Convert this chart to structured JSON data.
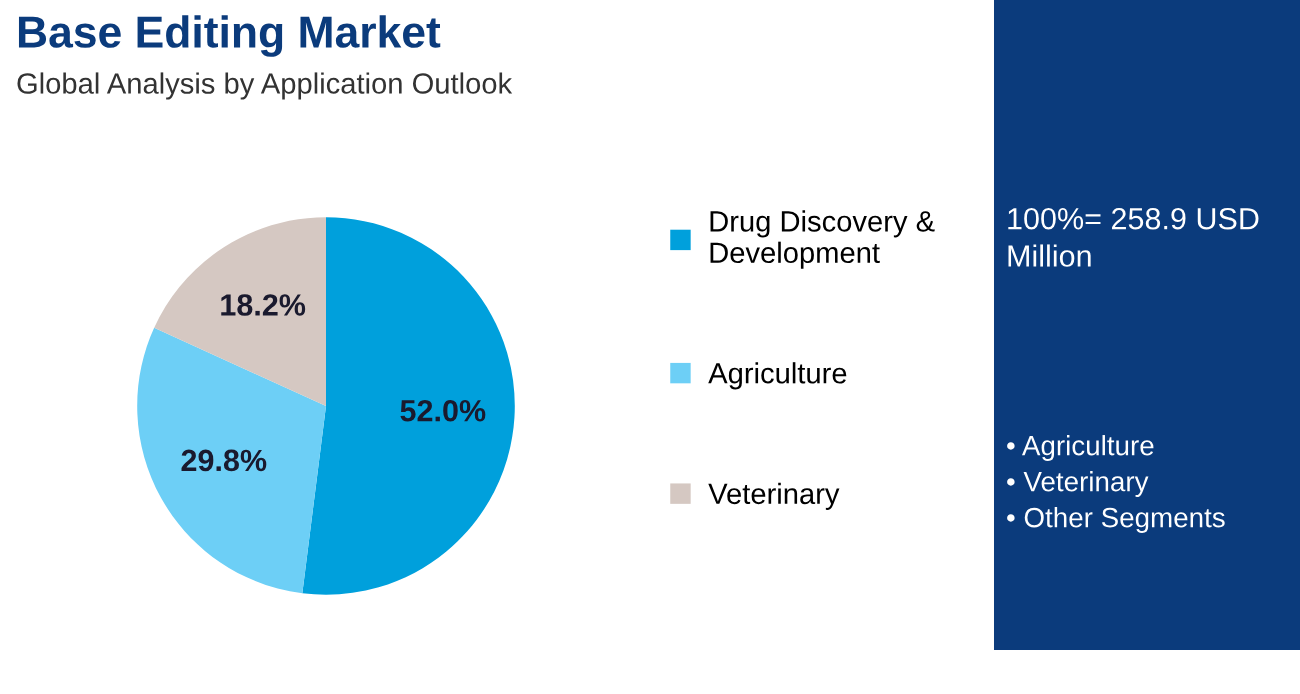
{
  "chart_data": {
    "type": "pie",
    "title": "Base Editing Market",
    "subtitle": "Global Analysis by Application Outlook",
    "categories": [
      "Drug Discovery & Development",
      "Agriculture",
      "Veterinary"
    ],
    "values": [
      52.0,
      29.8,
      18.2
    ],
    "colors": [
      "#00a0dc",
      "#6dcff6",
      "#d5c8c2"
    ],
    "value_labels": [
      "52.0%",
      "29.8%",
      "18.2%"
    ],
    "legend": "right",
    "annotations": [
      "100%= 258.9 USD Million",
      "• Agriculture",
      "• Veterinary",
      "• Other Segments"
    ]
  }
}
